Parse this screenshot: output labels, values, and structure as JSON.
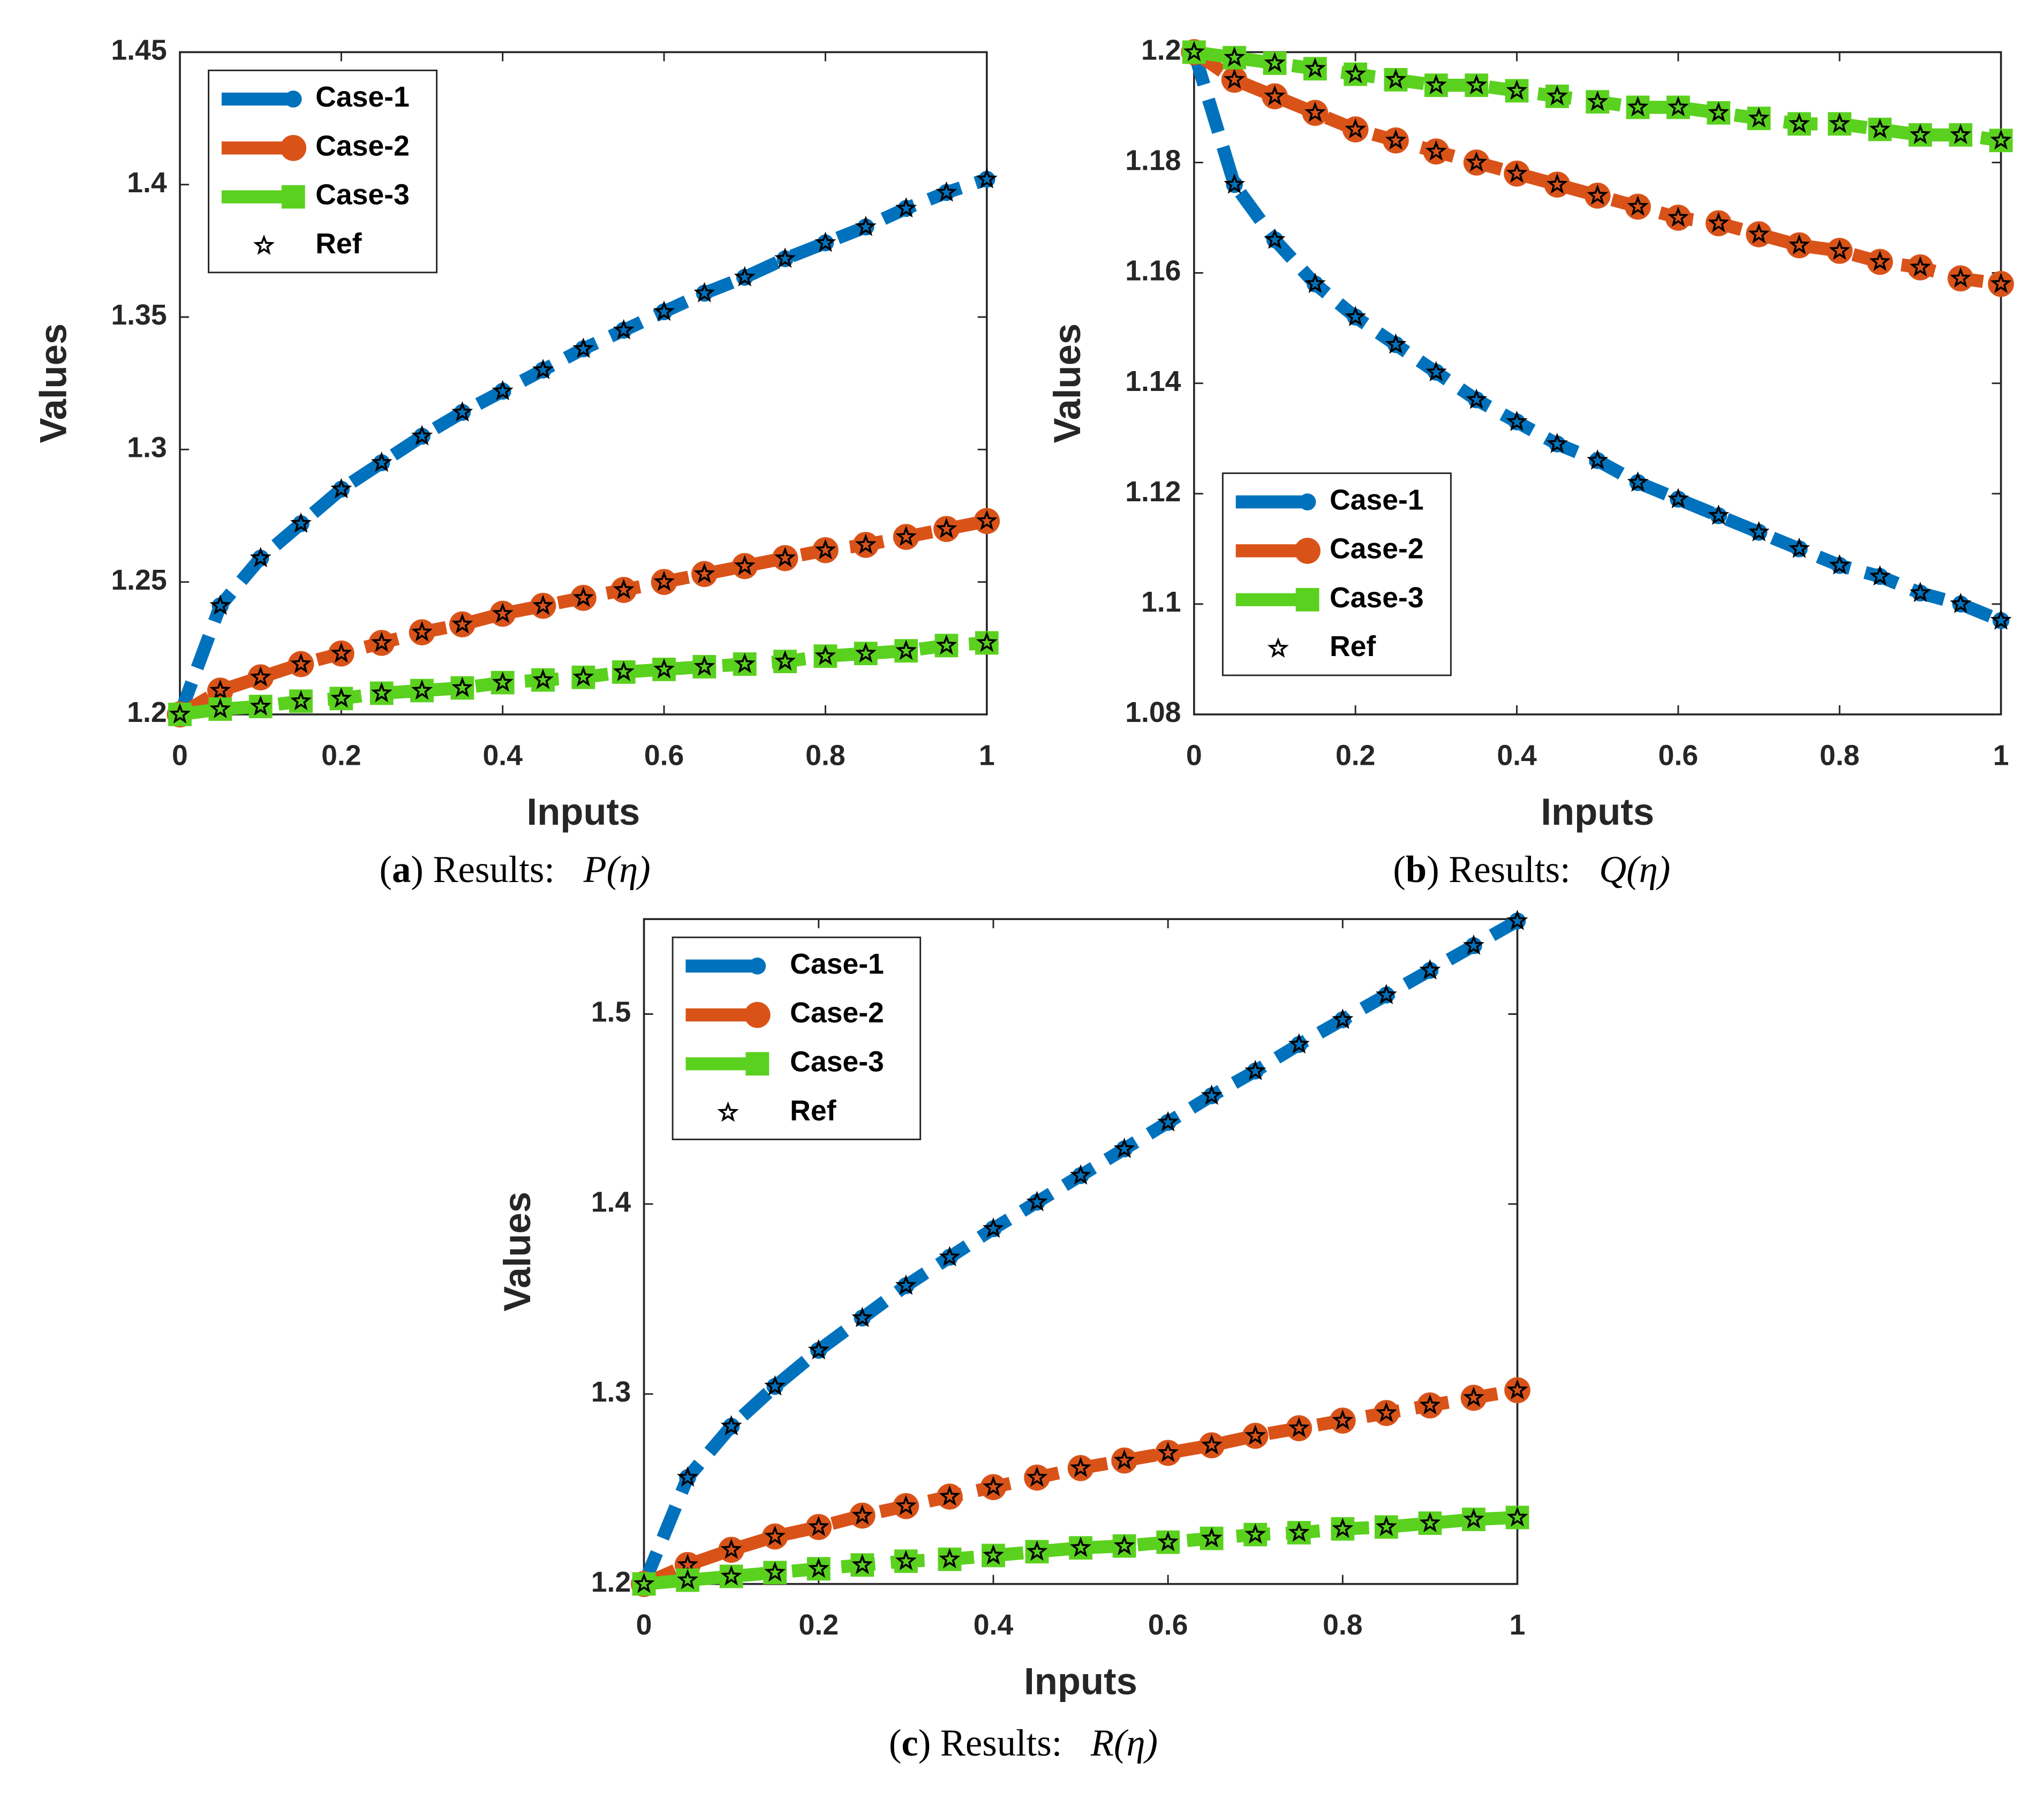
{
  "chart_data": [
    {
      "type": "line",
      "x": [
        0,
        0.05,
        0.1,
        0.15,
        0.2,
        0.25,
        0.3,
        0.35,
        0.4,
        0.45,
        0.5,
        0.55,
        0.6,
        0.65,
        0.7,
        0.75,
        0.8,
        0.85,
        0.9,
        0.95,
        1
      ],
      "xlim": [
        0,
        1
      ],
      "xticks": [
        0,
        0.2,
        0.4,
        0.6,
        0.8,
        1
      ],
      "ylim": [
        1.2,
        1.45
      ],
      "yticks": [
        1.2,
        1.25,
        1.3,
        1.35,
        1.4,
        1.45
      ],
      "xlabel": "Inputs",
      "ylabel": "Values",
      "legend": "upper left",
      "series": [
        {
          "name": "Case-1",
          "color": "#0072bd",
          "marker": "circle",
          "values": [
            1.2,
            1.241,
            1.259,
            1.272,
            1.285,
            1.295,
            1.305,
            1.314,
            1.322,
            1.33,
            1.338,
            1.345,
            1.352,
            1.359,
            1.365,
            1.372,
            1.378,
            1.384,
            1.391,
            1.397,
            1.402
          ]
        },
        {
          "name": "Case-2",
          "color": "#d95319",
          "marker": "big-circle",
          "values": [
            1.2,
            1.209,
            1.214,
            1.219,
            1.223,
            1.227,
            1.231,
            1.234,
            1.238,
            1.241,
            1.244,
            1.247,
            1.25,
            1.253,
            1.256,
            1.259,
            1.262,
            1.264,
            1.267,
            1.27,
            1.273
          ]
        },
        {
          "name": "Case-3",
          "color": "#5ad11f",
          "marker": "square",
          "values": [
            1.2,
            1.202,
            1.203,
            1.205,
            1.206,
            1.208,
            1.209,
            1.21,
            1.212,
            1.213,
            1.214,
            1.216,
            1.217,
            1.218,
            1.219,
            1.22,
            1.222,
            1.223,
            1.224,
            1.226,
            1.227
          ]
        },
        {
          "name": "Ref",
          "color": "#000000",
          "marker": "star"
        }
      ],
      "caption": {
        "open": "(",
        "label": "a",
        "text": ") Results:",
        "math": "P(η)"
      }
    },
    {
      "type": "line",
      "x": [
        0,
        0.05,
        0.1,
        0.15,
        0.2,
        0.25,
        0.3,
        0.35,
        0.4,
        0.45,
        0.5,
        0.55,
        0.6,
        0.65,
        0.7,
        0.75,
        0.8,
        0.85,
        0.9,
        0.95,
        1
      ],
      "xlim": [
        0,
        1
      ],
      "xticks": [
        0,
        0.2,
        0.4,
        0.6,
        0.8,
        1
      ],
      "ylim": [
        1.08,
        1.2
      ],
      "yticks": [
        1.08,
        1.1,
        1.12,
        1.14,
        1.16,
        1.18,
        1.2
      ],
      "xlabel": "Inputs",
      "ylabel": "Values",
      "legend": "lower left",
      "series": [
        {
          "name": "Case-1",
          "color": "#0072bd",
          "marker": "circle",
          "values": [
            1.2,
            1.176,
            1.166,
            1.158,
            1.152,
            1.147,
            1.142,
            1.137,
            1.133,
            1.129,
            1.126,
            1.122,
            1.119,
            1.116,
            1.113,
            1.11,
            1.107,
            1.105,
            1.102,
            1.1,
            1.097
          ]
        },
        {
          "name": "Case-2",
          "color": "#d95319",
          "marker": "big-circle",
          "values": [
            1.2,
            1.195,
            1.192,
            1.189,
            1.186,
            1.184,
            1.182,
            1.18,
            1.178,
            1.176,
            1.174,
            1.172,
            1.17,
            1.169,
            1.167,
            1.165,
            1.164,
            1.162,
            1.161,
            1.159,
            1.158
          ]
        },
        {
          "name": "Case-3",
          "color": "#5ad11f",
          "marker": "square",
          "values": [
            1.2,
            1.199,
            1.198,
            1.197,
            1.196,
            1.195,
            1.194,
            1.194,
            1.193,
            1.192,
            1.191,
            1.19,
            1.19,
            1.189,
            1.188,
            1.187,
            1.187,
            1.186,
            1.185,
            1.185,
            1.184
          ]
        },
        {
          "name": "Ref",
          "color": "#000000",
          "marker": "star"
        }
      ],
      "caption": {
        "open": "(",
        "label": "b",
        "text": ") Results:",
        "math": "Q(η)"
      }
    },
    {
      "type": "line",
      "x": [
        0,
        0.05,
        0.1,
        0.15,
        0.2,
        0.25,
        0.3,
        0.35,
        0.4,
        0.45,
        0.5,
        0.55,
        0.6,
        0.65,
        0.7,
        0.75,
        0.8,
        0.85,
        0.9,
        0.95,
        1
      ],
      "xlim": [
        0,
        1
      ],
      "xticks": [
        0,
        0.2,
        0.4,
        0.6,
        0.8,
        1
      ],
      "ylim": [
        1.2,
        1.55
      ],
      "yticks": [
        1.2,
        1.3,
        1.4,
        1.5
      ],
      "xlabel": "Inputs",
      "ylabel": "Values",
      "legend": "upper left",
      "series": [
        {
          "name": "Case-1",
          "color": "#0072bd",
          "marker": "circle",
          "values": [
            1.2,
            1.256,
            1.283,
            1.304,
            1.323,
            1.34,
            1.357,
            1.372,
            1.387,
            1.401,
            1.415,
            1.429,
            1.443,
            1.457,
            1.47,
            1.484,
            1.497,
            1.51,
            1.523,
            1.536,
            1.549
          ]
        },
        {
          "name": "Case-2",
          "color": "#d95319",
          "marker": "big-circle",
          "values": [
            1.2,
            1.21,
            1.218,
            1.225,
            1.23,
            1.236,
            1.241,
            1.246,
            1.251,
            1.256,
            1.261,
            1.265,
            1.269,
            1.273,
            1.278,
            1.282,
            1.286,
            1.29,
            1.294,
            1.298,
            1.302
          ]
        },
        {
          "name": "Case-3",
          "color": "#5ad11f",
          "marker": "square",
          "values": [
            1.2,
            1.202,
            1.204,
            1.206,
            1.208,
            1.21,
            1.212,
            1.213,
            1.215,
            1.217,
            1.219,
            1.22,
            1.222,
            1.224,
            1.226,
            1.227,
            1.229,
            1.23,
            1.232,
            1.234,
            1.235
          ]
        },
        {
          "name": "Ref",
          "color": "#000000",
          "marker": "star"
        }
      ],
      "caption": {
        "open": "(",
        "label": "c",
        "text": ") Results:",
        "math": "R(η)"
      }
    }
  ]
}
